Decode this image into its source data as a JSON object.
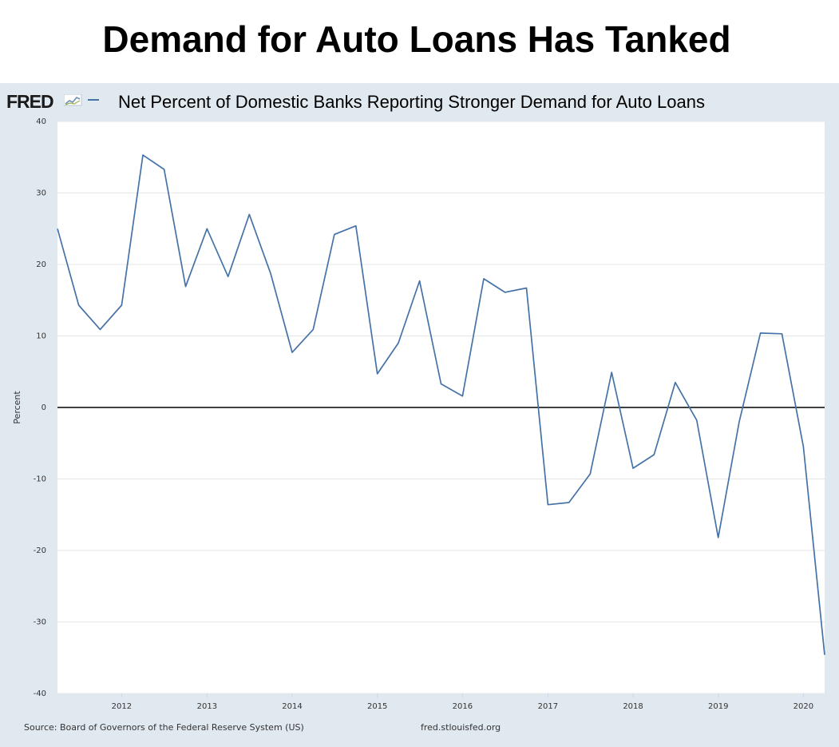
{
  "title": "Demand for Auto Loans Has Tanked",
  "fred": {
    "logo_text": "FRED",
    "chart_title": "Net Percent of Domestic Banks Reporting Stronger Demand for Auto Loans",
    "source": "Source: Board of Governors of the Federal Reserve System (US)",
    "url": "fred.stlouisfed.org"
  },
  "colors": {
    "line": "#4572a7",
    "panel_bg": "#e1e9f0",
    "plot_bg": "#ffffff",
    "zero_line": "#000000"
  },
  "chart_data": {
    "type": "line",
    "title": "Net Percent of Domestic Banks Reporting Stronger Demand for Auto Loans",
    "xlabel": "",
    "ylabel": "Percent",
    "ylim": [
      -40,
      40
    ],
    "yticks": [
      40,
      30,
      20,
      10,
      0,
      -10,
      -20,
      -30,
      -40
    ],
    "xticks": [
      "2012",
      "2013",
      "2014",
      "2015",
      "2016",
      "2017",
      "2018",
      "2019",
      "2020"
    ],
    "xlim": [
      "2011-04-01",
      "2020-04-01"
    ],
    "grid": true,
    "legend": "none",
    "series": [
      {
        "x": [
          "2011-04-01",
          "2011-07-01",
          "2011-10-01",
          "2012-01-01",
          "2012-04-01",
          "2012-07-01",
          "2012-10-01",
          "2013-01-01",
          "2013-04-01",
          "2013-07-01",
          "2013-10-01",
          "2014-01-01",
          "2014-04-01",
          "2014-07-01",
          "2014-10-01",
          "2015-01-01",
          "2015-04-01",
          "2015-07-01",
          "2015-10-01",
          "2016-01-01",
          "2016-04-01",
          "2016-07-01",
          "2016-10-01",
          "2017-01-01",
          "2017-04-01",
          "2017-07-01",
          "2017-10-01",
          "2018-01-01",
          "2018-04-01",
          "2018-07-01",
          "2018-10-01",
          "2019-01-01",
          "2019-04-01",
          "2019-07-01",
          "2019-10-01",
          "2020-01-01",
          "2020-04-01"
        ],
        "values": [
          25.0,
          14.3,
          10.9,
          14.3,
          35.3,
          33.3,
          16.9,
          25.0,
          18.3,
          27.0,
          18.7,
          7.7,
          10.9,
          24.2,
          25.4,
          4.7,
          9.0,
          17.7,
          3.3,
          1.6,
          18.0,
          16.1,
          16.7,
          -13.6,
          -13.3,
          -9.3,
          4.9,
          -8.5,
          -6.6,
          3.5,
          -1.8,
          -18.2,
          -2.0,
          10.4,
          10.3,
          -5.5,
          -34.6
        ]
      }
    ]
  }
}
